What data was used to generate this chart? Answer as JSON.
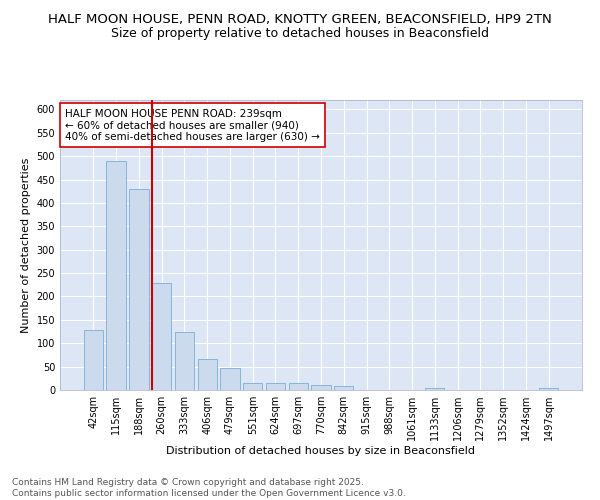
{
  "title": "HALF MOON HOUSE, PENN ROAD, KNOTTY GREEN, BEACONSFIELD, HP9 2TN",
  "subtitle": "Size of property relative to detached houses in Beaconsfield",
  "xlabel": "Distribution of detached houses by size in Beaconsfield",
  "ylabel": "Number of detached properties",
  "categories": [
    "42sqm",
    "115sqm",
    "188sqm",
    "260sqm",
    "333sqm",
    "406sqm",
    "479sqm",
    "551sqm",
    "624sqm",
    "697sqm",
    "770sqm",
    "842sqm",
    "915sqm",
    "988sqm",
    "1061sqm",
    "1133sqm",
    "1206sqm",
    "1279sqm",
    "1352sqm",
    "1424sqm",
    "1497sqm"
  ],
  "values": [
    128,
    490,
    430,
    228,
    124,
    67,
    46,
    14,
    14,
    14,
    10,
    8,
    0,
    0,
    0,
    5,
    0,
    0,
    0,
    0,
    5
  ],
  "bar_color": "#ccdaed",
  "bar_edge_color": "#7aadd4",
  "vline_color": "#cc0000",
  "annotation_text": "HALF MOON HOUSE PENN ROAD: 239sqm\n← 60% of detached houses are smaller (940)\n40% of semi-detached houses are larger (630) →",
  "annotation_box_color": "#ffffff",
  "annotation_box_edge": "#cc0000",
  "ylim": [
    0,
    620
  ],
  "yticks": [
    0,
    50,
    100,
    150,
    200,
    250,
    300,
    350,
    400,
    450,
    500,
    550,
    600
  ],
  "background_color": "#dce6f5",
  "grid_color": "#ffffff",
  "footer_text": "Contains HM Land Registry data © Crown copyright and database right 2025.\nContains public sector information licensed under the Open Government Licence v3.0.",
  "title_fontsize": 9.5,
  "subtitle_fontsize": 9,
  "axis_label_fontsize": 8,
  "tick_fontsize": 7,
  "annotation_fontsize": 7.5,
  "footer_fontsize": 6.5
}
